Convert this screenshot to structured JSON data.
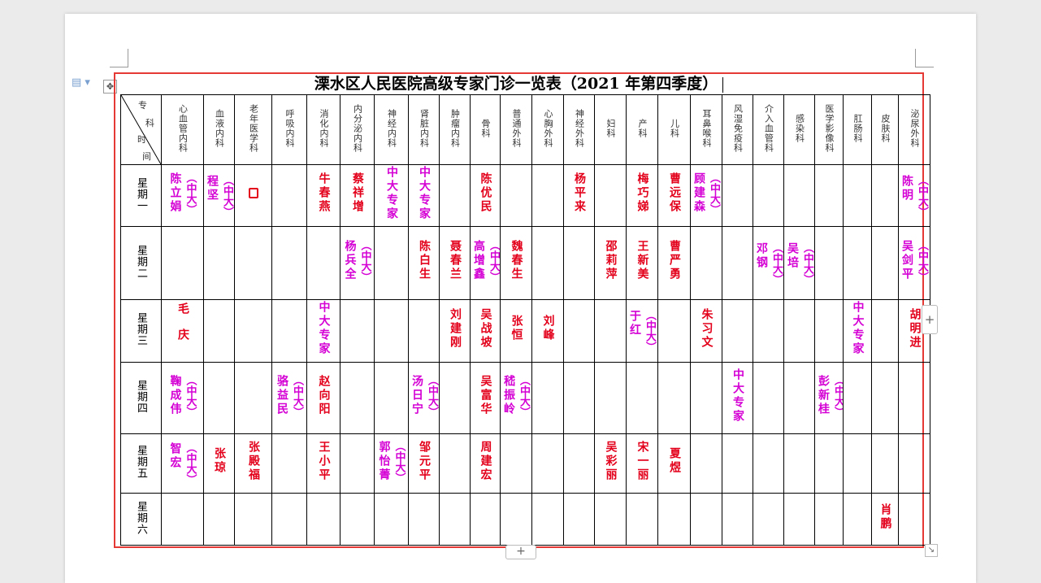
{
  "title": "溧水区人民医院高级专家门诊一览表（2021 年第四季度）",
  "corner_header": {
    "top": "专",
    "right": "科",
    "left_top": "时",
    "left_bottom": "间"
  },
  "departments": [
    "心血管内科",
    "血液内科",
    "老年医学科",
    "呼吸内科",
    "消化内科",
    "内分泌内科",
    "神经内科",
    "肾脏内科",
    "肿瘤内科",
    "骨科",
    "普通外科",
    "心胸外科",
    "神经外科",
    "妇科",
    "产科",
    "儿科",
    "耳鼻喉科",
    "风湿免疫科",
    "介入血管科",
    "感染科",
    "医学影像科",
    "肛肠科",
    "皮肤科",
    "泌尿外科"
  ],
  "days": [
    "星期一",
    "星期二",
    "星期三",
    "星期四",
    "星期五",
    "星期六"
  ],
  "schedule": [
    {
      "day": "星期一",
      "cells": [
        {
          "col": 0,
          "name": "陈立娟",
          "tag": "（中大）",
          "color": "magenta"
        },
        {
          "col": 1,
          "name": "程坚",
          "tag": "（中大）",
          "color": "magenta"
        },
        {
          "col": 2,
          "name": "0",
          "tag": "",
          "color": "red",
          "style": "box"
        },
        {
          "col": 4,
          "name": "牛春燕",
          "tag": "",
          "color": "red"
        },
        {
          "col": 5,
          "name": "蔡祥增",
          "tag": "",
          "color": "red"
        },
        {
          "col": 6,
          "name": "中大专家",
          "tag": "",
          "color": "magenta"
        },
        {
          "col": 7,
          "name": "中大专家",
          "tag": "",
          "color": "magenta"
        },
        {
          "col": 9,
          "name": "陈优民",
          "tag": "",
          "color": "red"
        },
        {
          "col": 12,
          "name": "杨平来",
          "tag": "",
          "color": "red"
        },
        {
          "col": 14,
          "name": "梅巧娣",
          "tag": "",
          "color": "red"
        },
        {
          "col": 15,
          "name": "曹远保",
          "tag": "",
          "color": "red"
        },
        {
          "col": 16,
          "name": "顾建森",
          "tag": "（中大）",
          "color": "magenta"
        },
        {
          "col": 23,
          "name": "陈明",
          "tag": "（中大）",
          "color": "magenta"
        }
      ]
    },
    {
      "day": "星期二",
      "cells": [
        {
          "col": 5,
          "name": "杨兵全",
          "tag": "（中大）",
          "color": "magenta"
        },
        {
          "col": 7,
          "name": "陈白生",
          "tag": "",
          "color": "red"
        },
        {
          "col": 8,
          "name": "聂春兰",
          "tag": "",
          "color": "red"
        },
        {
          "col": 9,
          "name": "高增鑫",
          "tag": "（中大）",
          "color": "magenta"
        },
        {
          "col": 10,
          "name": "魏春生",
          "tag": "",
          "color": "red"
        },
        {
          "col": 13,
          "name": "邵莉萍",
          "tag": "",
          "color": "red"
        },
        {
          "col": 14,
          "name": "王新美",
          "tag": "",
          "color": "red"
        },
        {
          "col": 15,
          "name": "曹严勇",
          "tag": "",
          "color": "red"
        },
        {
          "col": 18,
          "name": "邓钢",
          "tag": "（中大）",
          "color": "magenta"
        },
        {
          "col": 19,
          "name": "吴培",
          "tag": "（中大）",
          "color": "magenta"
        },
        {
          "col": 23,
          "name": "吴剑平",
          "tag": "（中大）",
          "color": "magenta"
        }
      ]
    },
    {
      "day": "星期三",
      "cells": [
        {
          "col": 0,
          "name": "毛庆",
          "tag": "",
          "color": "red",
          "style": "spaced"
        },
        {
          "col": 4,
          "name": "中大专家",
          "tag": "",
          "color": "magenta"
        },
        {
          "col": 8,
          "name": "刘建刚",
          "tag": "",
          "color": "red"
        },
        {
          "col": 9,
          "name": "吴战坡",
          "tag": "",
          "color": "red"
        },
        {
          "col": 10,
          "name": "张恒",
          "tag": "",
          "color": "red"
        },
        {
          "col": 11,
          "name": "刘峰",
          "tag": "",
          "color": "red"
        },
        {
          "col": 14,
          "name": "于红",
          "tag": "（中大）",
          "color": "magenta"
        },
        {
          "col": 16,
          "name": "朱习文",
          "tag": "",
          "color": "red"
        },
        {
          "col": 21,
          "name": "中大专家",
          "tag": "",
          "color": "magenta"
        },
        {
          "col": 23,
          "name": "胡明进",
          "tag": "",
          "color": "red"
        }
      ]
    },
    {
      "day": "星期四",
      "cells": [
        {
          "col": 0,
          "name": "鞠成伟",
          "tag": "（中大）",
          "color": "magenta"
        },
        {
          "col": 3,
          "name": "骆益民",
          "tag": "（中大）",
          "color": "magenta"
        },
        {
          "col": 4,
          "name": "赵向阳",
          "tag": "",
          "color": "red"
        },
        {
          "col": 7,
          "name": "汤日宁",
          "tag": "（中大）",
          "color": "magenta"
        },
        {
          "col": 9,
          "name": "吴富华",
          "tag": "",
          "color": "red"
        },
        {
          "col": 10,
          "name": "嵇振岭",
          "tag": "（中大）",
          "color": "magenta"
        },
        {
          "col": 17,
          "name": "中大专家",
          "tag": "",
          "color": "magenta"
        },
        {
          "col": 20,
          "name": "彭新桂",
          "tag": "（中大）",
          "color": "magenta"
        }
      ]
    },
    {
      "day": "星期五",
      "cells": [
        {
          "col": 0,
          "name": "智宏",
          "tag": "（中大）",
          "color": "magenta"
        },
        {
          "col": 1,
          "name": "张琼",
          "tag": "",
          "color": "red"
        },
        {
          "col": 2,
          "name": "张殿福",
          "tag": "",
          "color": "red"
        },
        {
          "col": 4,
          "name": "王小平",
          "tag": "",
          "color": "red"
        },
        {
          "col": 6,
          "name": "郭怡菁",
          "tag": "（中大）",
          "color": "magenta"
        },
        {
          "col": 7,
          "name": "邹元平",
          "tag": "",
          "color": "red"
        },
        {
          "col": 9,
          "name": "周建宏",
          "tag": "",
          "color": "red"
        },
        {
          "col": 13,
          "name": "吴彩丽",
          "tag": "",
          "color": "red"
        },
        {
          "col": 14,
          "name": "宋一丽",
          "tag": "",
          "color": "red"
        },
        {
          "col": 15,
          "name": "夏煜",
          "tag": "",
          "color": "red"
        }
      ]
    },
    {
      "day": "星期六",
      "cells": [
        {
          "col": 22,
          "name": "肖鹏",
          "tag": "",
          "color": "red"
        }
      ]
    }
  ],
  "colors": {
    "red": "#e3001b",
    "magenta": "#d400d4",
    "selection": "#e53935"
  },
  "icons": {
    "doc": "document-icon",
    "move": "table-move-icon",
    "add_column": "plus-icon",
    "add_row": "plus-icon",
    "resize": "resize-corner-icon"
  },
  "controls": {
    "move_glyph": "✥",
    "add_column_glyph": "+",
    "add_row_glyph": "+",
    "resize_glyph": "↘"
  }
}
